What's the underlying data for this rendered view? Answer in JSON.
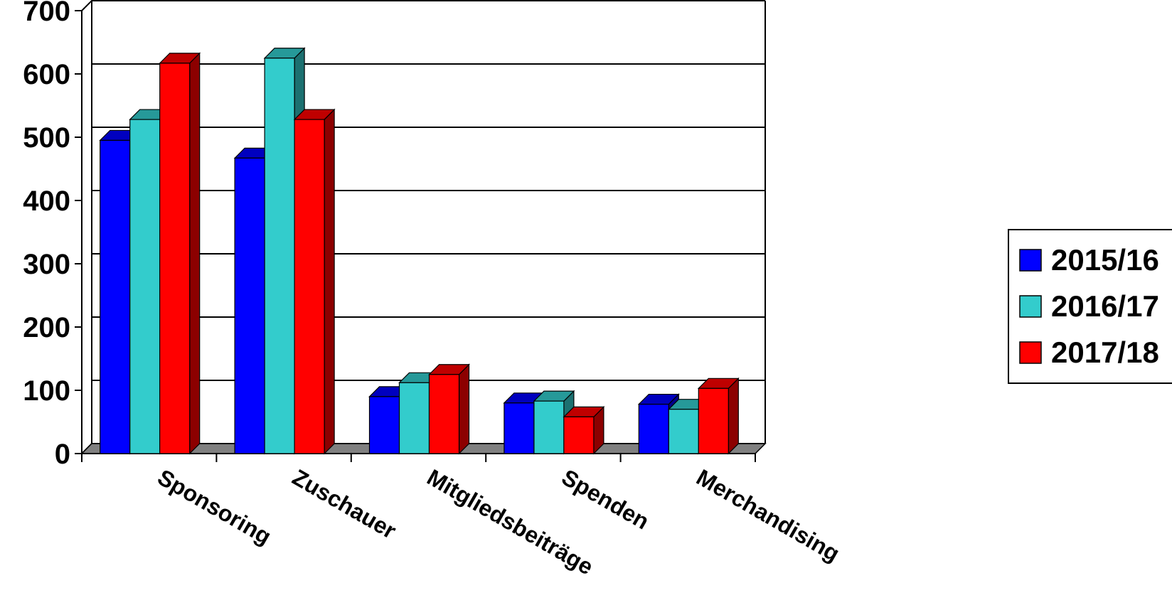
{
  "chart_data": {
    "type": "bar",
    "title": "",
    "xlabel": "",
    "ylabel": "",
    "ylim": [
      0,
      700
    ],
    "yticks": [
      0,
      100,
      200,
      300,
      400,
      500,
      600,
      700
    ],
    "categories": [
      "Sponsoring",
      "Zuschauer",
      "Mitgliedsbeiträge",
      "Spenden",
      "Merchandising"
    ],
    "series": [
      {
        "name": "2015/16",
        "color": "#0000ff",
        "values": [
          495,
          467,
          90,
          80,
          78
        ]
      },
      {
        "name": "2016/17",
        "color": "#33cccc",
        "values": [
          528,
          625,
          112,
          83,
          70
        ]
      },
      {
        "name": "2017/18",
        "color": "#ff0000",
        "values": [
          617,
          528,
          125,
          58,
          103
        ]
      }
    ],
    "grid": true,
    "legend": "right"
  }
}
